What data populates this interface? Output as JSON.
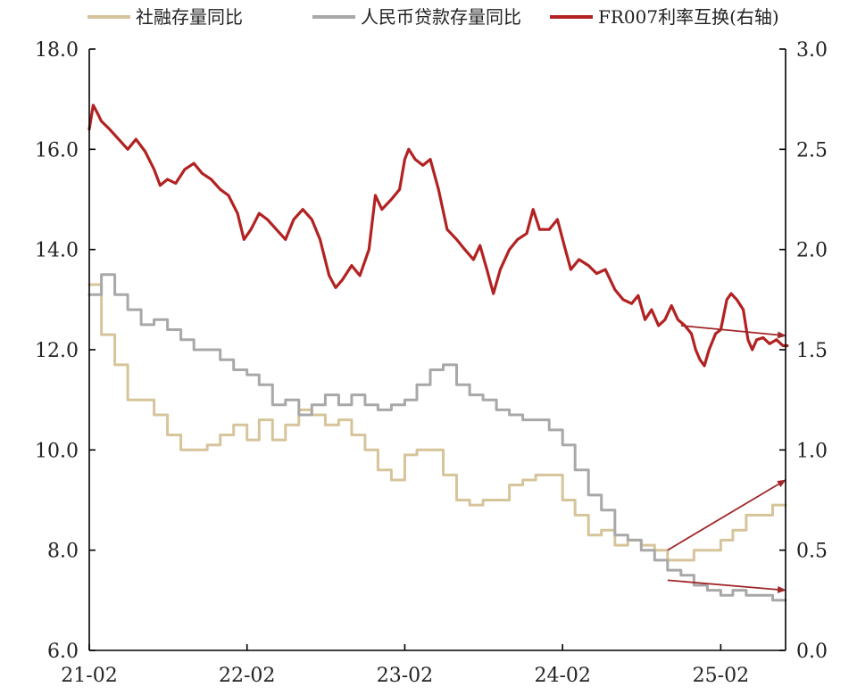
{
  "chart_data": {
    "type": "line",
    "title": "",
    "xlabel": "",
    "ylabel": "",
    "x_ticks": [
      "21-02",
      "22-02",
      "23-02",
      "24-02",
      "25-02"
    ],
    "x_range": [
      "2021-02",
      "2025-07"
    ],
    "y_left_ticks": [
      "6.0",
      "8.0",
      "10.0",
      "12.0",
      "14.0",
      "16.0",
      "18.0"
    ],
    "y_right_ticks": [
      "0.0",
      "0.5",
      "1.0",
      "1.5",
      "2.0",
      "2.5",
      "3.0"
    ],
    "y_left_range": [
      6,
      18
    ],
    "y_right_range": [
      0,
      3
    ],
    "grid": false,
    "legend_position": "top",
    "series": [
      {
        "name": "社融存量同比",
        "axis": "left",
        "color": "#d6c49a",
        "step": true,
        "points": [
          [
            "2021-02",
            13.3
          ],
          [
            "2021-03",
            12.3
          ],
          [
            "2021-04",
            11.7
          ],
          [
            "2021-05",
            11.0
          ],
          [
            "2021-06",
            11.0
          ],
          [
            "2021-07",
            10.7
          ],
          [
            "2021-08",
            10.3
          ],
          [
            "2021-09",
            10.0
          ],
          [
            "2021-10",
            10.0
          ],
          [
            "2021-11",
            10.1
          ],
          [
            "2021-12",
            10.3
          ],
          [
            "2022-01",
            10.5
          ],
          [
            "2022-02",
            10.2
          ],
          [
            "2022-03",
            10.6
          ],
          [
            "2022-04",
            10.2
          ],
          [
            "2022-05",
            10.5
          ],
          [
            "2022-06",
            10.8
          ],
          [
            "2022-07",
            10.7
          ],
          [
            "2022-08",
            10.5
          ],
          [
            "2022-09",
            10.6
          ],
          [
            "2022-10",
            10.3
          ],
          [
            "2022-11",
            10.0
          ],
          [
            "2022-12",
            9.6
          ],
          [
            "2023-01",
            9.4
          ],
          [
            "2023-02",
            9.9
          ],
          [
            "2023-03",
            10.0
          ],
          [
            "2023-04",
            10.0
          ],
          [
            "2023-05",
            9.5
          ],
          [
            "2023-06",
            9.0
          ],
          [
            "2023-07",
            8.9
          ],
          [
            "2023-08",
            9.0
          ],
          [
            "2023-09",
            9.0
          ],
          [
            "2023-10",
            9.3
          ],
          [
            "2023-11",
            9.4
          ],
          [
            "2023-12",
            9.5
          ],
          [
            "2024-01",
            9.5
          ],
          [
            "2024-02",
            9.0
          ],
          [
            "2024-03",
            8.7
          ],
          [
            "2024-04",
            8.3
          ],
          [
            "2024-05",
            8.4
          ],
          [
            "2024-06",
            8.1
          ],
          [
            "2024-07",
            8.2
          ],
          [
            "2024-08",
            8.1
          ],
          [
            "2024-09",
            8.0
          ],
          [
            "2024-10",
            7.8
          ],
          [
            "2024-11",
            7.8
          ],
          [
            "2024-12",
            8.0
          ],
          [
            "2025-01",
            8.0
          ],
          [
            "2025-02",
            8.2
          ],
          [
            "2025-03",
            8.4
          ],
          [
            "2025-04",
            8.7
          ],
          [
            "2025-05",
            8.7
          ],
          [
            "2025-06",
            8.9
          ],
          [
            "2025-07",
            8.9
          ]
        ]
      },
      {
        "name": "人民币贷款存量同比",
        "axis": "left",
        "color": "#a8a8a8",
        "step": true,
        "points": [
          [
            "2021-02",
            13.1
          ],
          [
            "2021-03",
            13.5
          ],
          [
            "2021-04",
            13.1
          ],
          [
            "2021-05",
            12.8
          ],
          [
            "2021-06",
            12.5
          ],
          [
            "2021-07",
            12.6
          ],
          [
            "2021-08",
            12.4
          ],
          [
            "2021-09",
            12.2
          ],
          [
            "2021-10",
            12.0
          ],
          [
            "2021-11",
            12.0
          ],
          [
            "2021-12",
            11.8
          ],
          [
            "2022-01",
            11.6
          ],
          [
            "2022-02",
            11.5
          ],
          [
            "2022-03",
            11.3
          ],
          [
            "2022-04",
            10.9
          ],
          [
            "2022-05",
            11.0
          ],
          [
            "2022-06",
            10.7
          ],
          [
            "2022-07",
            10.9
          ],
          [
            "2022-08",
            11.1
          ],
          [
            "2022-09",
            10.9
          ],
          [
            "2022-10",
            11.1
          ],
          [
            "2022-11",
            10.9
          ],
          [
            "2022-12",
            10.8
          ],
          [
            "2023-01",
            10.9
          ],
          [
            "2023-02",
            11.0
          ],
          [
            "2023-03",
            11.3
          ],
          [
            "2023-04",
            11.6
          ],
          [
            "2023-05",
            11.7
          ],
          [
            "2023-06",
            11.3
          ],
          [
            "2023-07",
            11.1
          ],
          [
            "2023-08",
            11.0
          ],
          [
            "2023-09",
            10.8
          ],
          [
            "2023-10",
            10.7
          ],
          [
            "2023-11",
            10.6
          ],
          [
            "2023-12",
            10.6
          ],
          [
            "2024-01",
            10.4
          ],
          [
            "2024-02",
            10.1
          ],
          [
            "2024-03",
            9.6
          ],
          [
            "2024-04",
            9.1
          ],
          [
            "2024-05",
            8.8
          ],
          [
            "2024-06",
            8.3
          ],
          [
            "2024-07",
            8.2
          ],
          [
            "2024-08",
            8.0
          ],
          [
            "2024-09",
            7.8
          ],
          [
            "2024-10",
            7.6
          ],
          [
            "2024-11",
            7.5
          ],
          [
            "2024-12",
            7.3
          ],
          [
            "2025-01",
            7.2
          ],
          [
            "2025-02",
            7.1
          ],
          [
            "2025-03",
            7.2
          ],
          [
            "2025-04",
            7.1
          ],
          [
            "2025-05",
            7.1
          ],
          [
            "2025-06",
            7.0
          ],
          [
            "2025-07",
            7.0
          ]
        ]
      },
      {
        "name": "FR007利率互换(右轴)",
        "axis": "right",
        "color": "#b22222",
        "step": false,
        "points": [
          [
            "2021-02-01",
            2.6
          ],
          [
            "2021-02-10",
            2.72
          ],
          [
            "2021-02-20",
            2.68
          ],
          [
            "2021-03-01",
            2.64
          ],
          [
            "2021-03-20",
            2.6
          ],
          [
            "2021-04-10",
            2.55
          ],
          [
            "2021-05-01",
            2.5
          ],
          [
            "2021-05-20",
            2.55
          ],
          [
            "2021-06-10",
            2.49
          ],
          [
            "2021-07-01",
            2.4
          ],
          [
            "2021-07-15",
            2.32
          ],
          [
            "2021-08-01",
            2.35
          ],
          [
            "2021-08-20",
            2.33
          ],
          [
            "2021-09-10",
            2.4
          ],
          [
            "2021-10-01",
            2.43
          ],
          [
            "2021-10-20",
            2.38
          ],
          [
            "2021-11-10",
            2.35
          ],
          [
            "2021-12-01",
            2.3
          ],
          [
            "2021-12-20",
            2.27
          ],
          [
            "2022-01-10",
            2.18
          ],
          [
            "2022-01-25",
            2.05
          ],
          [
            "2022-02-10",
            2.1
          ],
          [
            "2022-03-01",
            2.18
          ],
          [
            "2022-03-20",
            2.15
          ],
          [
            "2022-04-10",
            2.1
          ],
          [
            "2022-05-01",
            2.05
          ],
          [
            "2022-05-20",
            2.15
          ],
          [
            "2022-06-10",
            2.2
          ],
          [
            "2022-07-01",
            2.15
          ],
          [
            "2022-07-20",
            2.05
          ],
          [
            "2022-08-10",
            1.87
          ],
          [
            "2022-08-25",
            1.81
          ],
          [
            "2022-09-10",
            1.85
          ],
          [
            "2022-10-01",
            1.92
          ],
          [
            "2022-10-20",
            1.87
          ],
          [
            "2022-11-10",
            2.0
          ],
          [
            "2022-11-25",
            2.27
          ],
          [
            "2022-12-10",
            2.2
          ],
          [
            "2023-01-01",
            2.25
          ],
          [
            "2023-01-20",
            2.3
          ],
          [
            "2023-02-01",
            2.45
          ],
          [
            "2023-02-10",
            2.5
          ],
          [
            "2023-02-25",
            2.45
          ],
          [
            "2023-03-15",
            2.42
          ],
          [
            "2023-04-01",
            2.45
          ],
          [
            "2023-04-20",
            2.3
          ],
          [
            "2023-05-10",
            2.1
          ],
          [
            "2023-06-01",
            2.05
          ],
          [
            "2023-06-20",
            2.0
          ],
          [
            "2023-07-10",
            1.95
          ],
          [
            "2023-07-25",
            2.02
          ],
          [
            "2023-08-10",
            1.9
          ],
          [
            "2023-08-25",
            1.78
          ],
          [
            "2023-09-10",
            1.9
          ],
          [
            "2023-10-01",
            2.0
          ],
          [
            "2023-10-20",
            2.05
          ],
          [
            "2023-11-10",
            2.08
          ],
          [
            "2023-11-25",
            2.2
          ],
          [
            "2023-12-10",
            2.1
          ],
          [
            "2024-01-01",
            2.1
          ],
          [
            "2024-01-20",
            2.15
          ],
          [
            "2024-02-05",
            2.02
          ],
          [
            "2024-02-20",
            1.9
          ],
          [
            "2024-03-10",
            1.95
          ],
          [
            "2024-04-01",
            1.92
          ],
          [
            "2024-04-20",
            1.88
          ],
          [
            "2024-05-10",
            1.9
          ],
          [
            "2024-06-01",
            1.8
          ],
          [
            "2024-06-20",
            1.75
          ],
          [
            "2024-07-10",
            1.73
          ],
          [
            "2024-07-25",
            1.77
          ],
          [
            "2024-08-10",
            1.65
          ],
          [
            "2024-08-25",
            1.7
          ],
          [
            "2024-09-10",
            1.62
          ],
          [
            "2024-09-25",
            1.65
          ],
          [
            "2024-10-10",
            1.72
          ],
          [
            "2024-10-25",
            1.65
          ],
          [
            "2024-11-10",
            1.62
          ],
          [
            "2024-11-25",
            1.58
          ],
          [
            "2024-12-05",
            1.5
          ],
          [
            "2024-12-15",
            1.45
          ],
          [
            "2024-12-25",
            1.42
          ],
          [
            "2025-01-05",
            1.5
          ],
          [
            "2025-01-20",
            1.58
          ],
          [
            "2025-02-01",
            1.6
          ],
          [
            "2025-02-15",
            1.75
          ],
          [
            "2025-02-25",
            1.78
          ],
          [
            "2025-03-10",
            1.75
          ],
          [
            "2025-03-25",
            1.7
          ],
          [
            "2025-04-05",
            1.55
          ],
          [
            "2025-04-15",
            1.5
          ],
          [
            "2025-04-25",
            1.55
          ],
          [
            "2025-05-10",
            1.56
          ],
          [
            "2025-05-25",
            1.53
          ],
          [
            "2025-06-10",
            1.55
          ],
          [
            "2025-06-25",
            1.52
          ],
          [
            "2025-07-05",
            1.52
          ]
        ]
      }
    ],
    "annotations": [
      {
        "kind": "arrow",
        "color": "#a0282a",
        "from": [
          "2024-11",
          1.62,
          "right"
        ],
        "to": [
          "2025-07",
          1.57,
          "right"
        ]
      },
      {
        "kind": "arrow",
        "color": "#a0282a",
        "from": [
          "2024-10",
          8.0,
          "left"
        ],
        "to": [
          "2025-07",
          9.4,
          "left"
        ]
      },
      {
        "kind": "arrow",
        "color": "#a0282a",
        "from": [
          "2024-10",
          7.4,
          "left"
        ],
        "to": [
          "2025-07",
          7.2,
          "left"
        ]
      }
    ]
  }
}
